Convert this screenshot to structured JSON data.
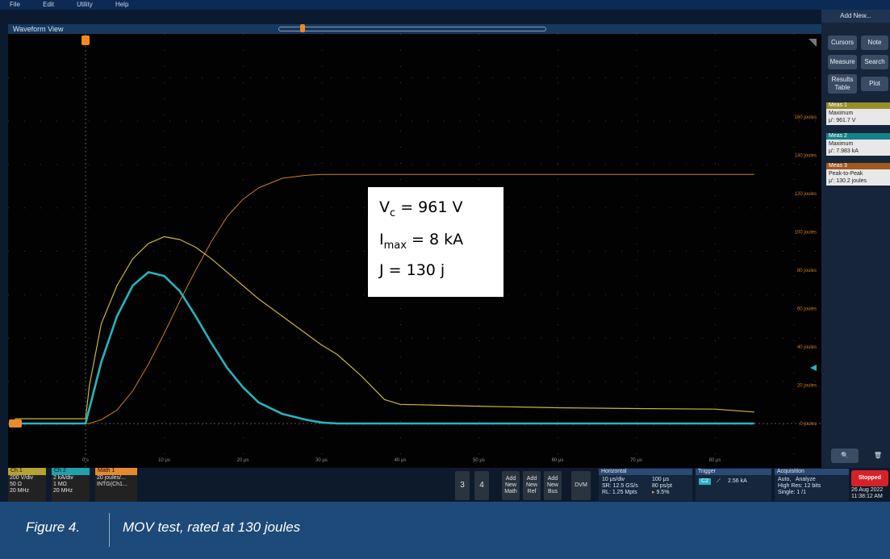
{
  "menu": [
    "File",
    "Edit",
    "Utility",
    "Help"
  ],
  "waveform_title": "Waveform View",
  "side": {
    "add_new": "Add New...",
    "buttons": [
      "Cursors",
      "Note",
      "Measure",
      "Search",
      "Results Table",
      "Plot"
    ]
  },
  "measurements": [
    {
      "header": "Meas 1",
      "name": "Maximum",
      "value": "μ': 961.7 V",
      "color": "#b9a832"
    },
    {
      "header": "Meas 2",
      "name": "Maximum",
      "value": "μ': 7.983 kA",
      "color": "#1a9aa2"
    },
    {
      "header": "Meas 3",
      "name": "Peak-to-Peak",
      "value": "μ': 130.2 joules",
      "color": "#d07a2a"
    }
  ],
  "annotation": {
    "vc": "961 V",
    "imax": "8 kA",
    "j": "130 j"
  },
  "time_labels": [
    "0 s",
    "10 μs",
    "20 μs",
    "30 μs",
    "40 μs",
    "50 μs",
    "60 μs",
    "70 μs",
    "80 μs"
  ],
  "joule_labels": [
    "160 joules",
    "140 joules",
    "120 joules",
    "100 joules",
    "80 joules",
    "60 joules",
    "40 joules",
    "20 joules",
    "0 joules"
  ],
  "channels": [
    {
      "label": "Ch 1",
      "lines": [
        "200 V/div",
        "50 Ω",
        "20 MHz"
      ],
      "color": "#c9b637"
    },
    {
      "label": "Ch 2",
      "lines": [
        "2 kA/div",
        "1 MΩ",
        "20 MHz"
      ],
      "color": "#26b4bf"
    },
    {
      "label": "Math 1",
      "lines": [
        "20 joules/...",
        "INTG(Ch1...",
        ""
      ],
      "color": "#e68a2e"
    }
  ],
  "ch_buttons": [
    "3",
    "4"
  ],
  "add_buttons": [
    "Add New Math",
    "Add New Ref",
    "Add New Bus",
    "DVM"
  ],
  "horizontal": {
    "title": "Horizontal",
    "l1": "10 μs/div",
    "l2": "SR: 12.5 GS/s",
    "l3": "RL: 1.25 Mpts",
    "r1": "100 μs",
    "r2": "80 ps/pt",
    "r3": "9.5%"
  },
  "trigger": {
    "title": "Trigger",
    "ch": "C2",
    "level": "2.56 kA"
  },
  "acquisition": {
    "title": "Acquisition",
    "l1": "Auto,",
    "l2": "High Res: 12 bits",
    "l3": "Single: 1 /1",
    "r1": "Analyze"
  },
  "status": "Stopped",
  "date": "26 Aug 2022",
  "time": "11:38:12 AM",
  "figure": {
    "label": "Figure 4.",
    "caption": "MOV test, rated at 130 joules"
  },
  "chart_data": {
    "type": "line",
    "x": [
      -9,
      0,
      0.5,
      2,
      4,
      6,
      8,
      10,
      12,
      14,
      16,
      18,
      20,
      22,
      25,
      28,
      30,
      32,
      35,
      38,
      40,
      45,
      50,
      60,
      70,
      80,
      85
    ],
    "series": [
      {
        "name": "Ch 1",
        "values": [
          25,
          25,
          200,
          520,
          720,
          860,
          940,
          975,
          960,
          920,
          860,
          790,
          720,
          650,
          560,
          470,
          410,
          360,
          250,
          125,
          100,
          95,
          90,
          82,
          78,
          75,
          60
        ]
      },
      {
        "name": "Ch 2",
        "values": [
          0,
          0,
          0.8,
          3.2,
          5.6,
          7.2,
          7.9,
          7.7,
          6.9,
          5.6,
          4.2,
          2.9,
          1.9,
          1.1,
          0.5,
          0.2,
          0.05,
          0,
          0,
          0,
          0,
          0,
          0,
          0,
          0,
          0,
          0
        ]
      },
      {
        "name": "Math 1",
        "values": [
          0,
          0,
          0,
          2,
          7,
          17,
          31,
          47,
          64,
          80,
          95,
          108,
          117,
          123,
          128,
          129.5,
          130,
          130,
          130,
          130,
          130,
          130,
          130,
          130,
          130,
          130,
          130
        ]
      }
    ]
  }
}
